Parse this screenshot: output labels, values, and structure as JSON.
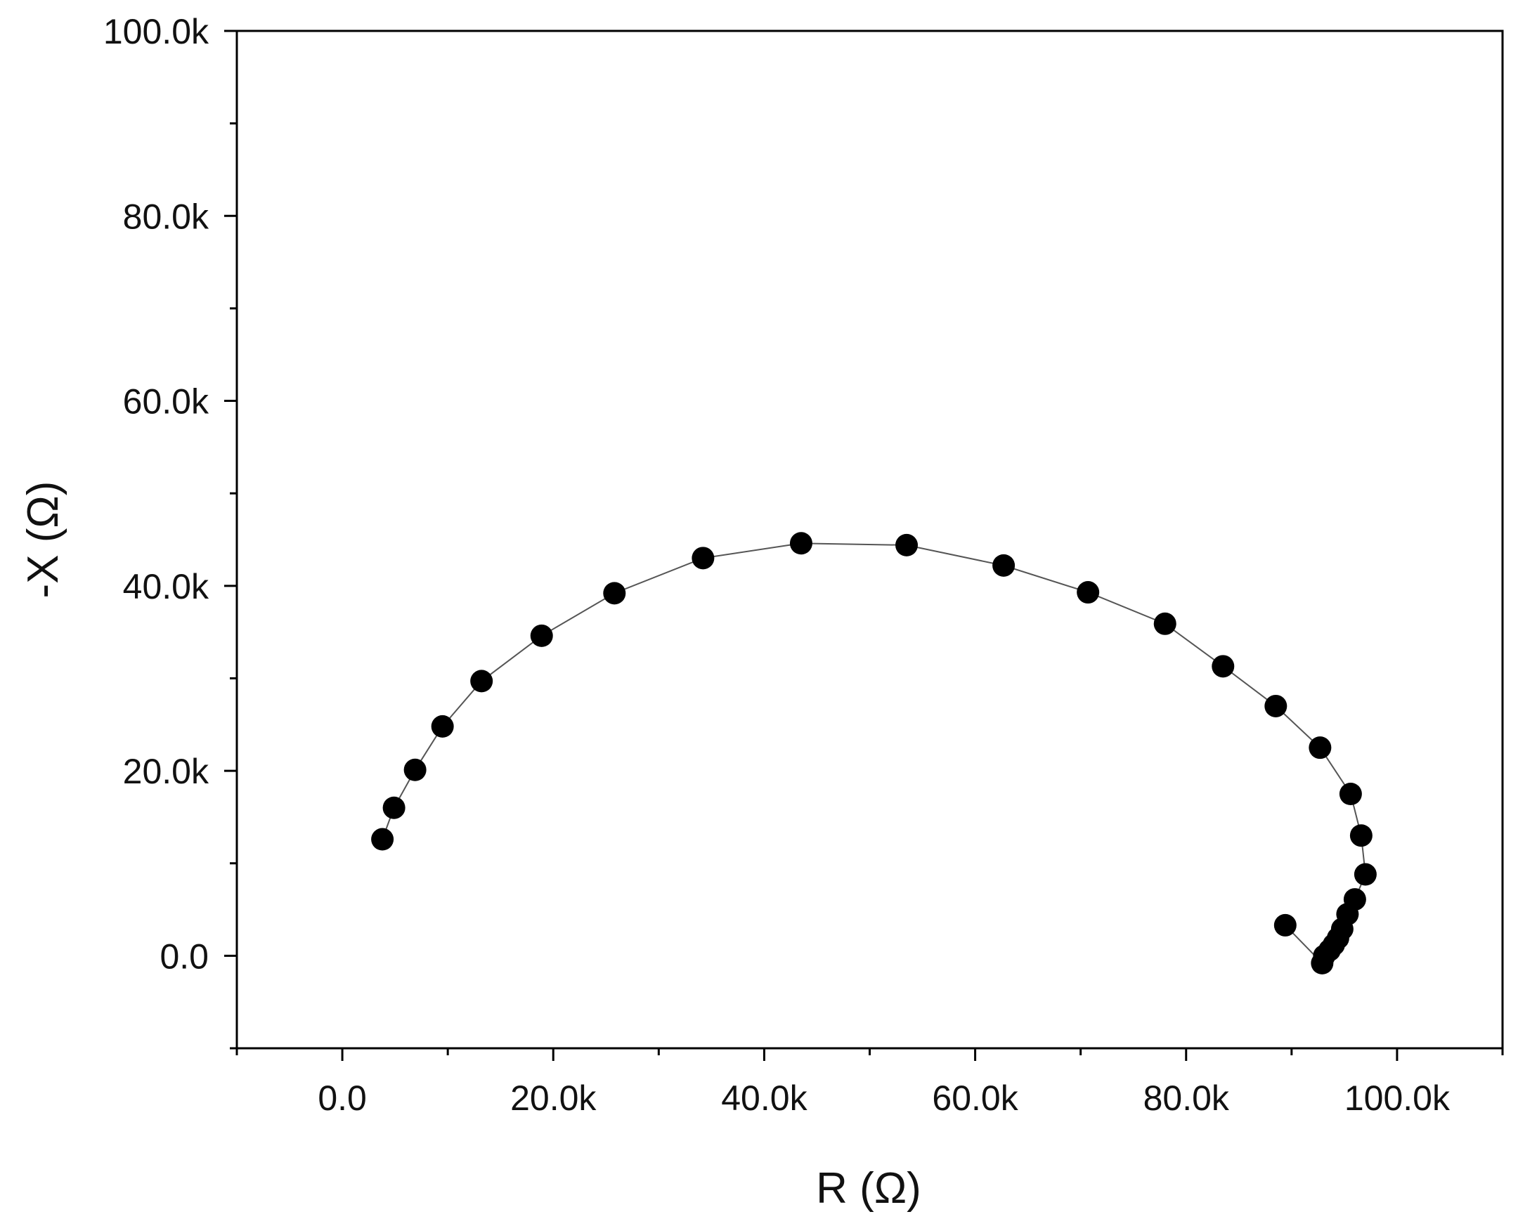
{
  "chart_data": {
    "type": "scatter",
    "title": "",
    "xlabel": "R (Ω)",
    "ylabel": "-X (Ω)",
    "xlim": [
      -10000,
      110000
    ],
    "ylim": [
      -10000,
      100000
    ],
    "x_ticks": [
      0,
      20000,
      40000,
      60000,
      80000,
      100000
    ],
    "x_tick_labels": [
      "0.0",
      "20.0k",
      "40.0k",
      "60.0k",
      "80.0k",
      "100.0k"
    ],
    "y_ticks": [
      0,
      20000,
      40000,
      60000,
      80000,
      100000
    ],
    "y_tick_labels": [
      "0.0",
      "20.0k",
      "40.0k",
      "60.0k",
      "80.0k",
      "100.0k"
    ],
    "grid": false,
    "connect_points": true,
    "marker_color": "#000000",
    "line_color": "#555555",
    "series": [
      {
        "x": [
          3800,
          4900,
          6900,
          9500,
          13200,
          18900,
          25800,
          34200,
          43500,
          53500,
          62700,
          70700,
          78000,
          83500,
          88500,
          92700,
          95600,
          96600,
          97000,
          96000,
          95300,
          94800,
          94400,
          94000,
          93600,
          93100,
          92900,
          89400
        ],
        "y": [
          12600,
          16000,
          20100,
          24800,
          29700,
          34600,
          39200,
          43000,
          44600,
          44400,
          42200,
          39300,
          35900,
          31300,
          27000,
          22500,
          17500,
          13000,
          8800,
          6100,
          4500,
          2900,
          1900,
          1200,
          600,
          0,
          -800,
          3300
        ]
      }
    ]
  }
}
